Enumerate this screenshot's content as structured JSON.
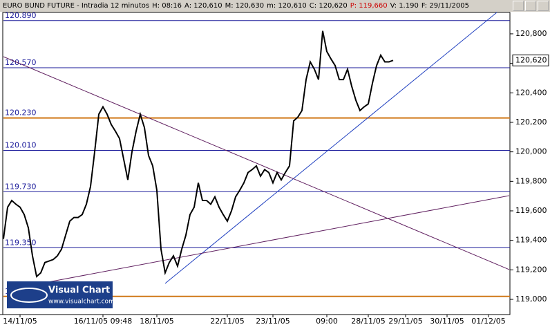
{
  "chart_data": {
    "type": "line",
    "title_bar": [
      {
        "text": "EURO BUND FUTURE - Intradia 12 minutos",
        "color": "#000000"
      },
      {
        "text": "H: 08:16",
        "color": "#000000"
      },
      {
        "text": "A: 120,610",
        "color": "#000000"
      },
      {
        "text": "M: 120,630",
        "color": "#000000"
      },
      {
        "text": "m: 120,610",
        "color": "#000000"
      },
      {
        "text": "C: 120,620",
        "color": "#000000"
      },
      {
        "text": "P: 119,660",
        "color": "#cc0000"
      },
      {
        "text": "V: 1.190",
        "color": "#000000"
      },
      {
        "text": "F: 29/11/2005",
        "color": "#000000"
      }
    ],
    "categories": [
      null,
      null,
      null,
      null,
      "14/11/05",
      null,
      null,
      null,
      null,
      null,
      null,
      null,
      null,
      null,
      null,
      null,
      null,
      null,
      null,
      null,
      null,
      null,
      null,
      null,
      "16/11/05 09:48",
      null,
      null,
      null,
      null,
      null,
      null,
      null,
      null,
      null,
      null,
      null,
      null,
      "18/11/05",
      null,
      null,
      null,
      null,
      null,
      null,
      null,
      null,
      null,
      null,
      null,
      null,
      null,
      null,
      null,
      null,
      "22/11/05",
      null,
      null,
      null,
      null,
      null,
      null,
      null,
      null,
      null,
      null,
      "23/11/05",
      null,
      null,
      null,
      null,
      null,
      null,
      null,
      null,
      null,
      null,
      null,
      null,
      "09:00",
      null,
      null,
      null,
      null,
      null,
      null,
      null,
      null,
      null,
      "28/11/05",
      null,
      null,
      null,
      null,
      null,
      null,
      null,
      null,
      "29/11/05",
      null,
      null,
      null,
      null,
      null,
      null,
      null,
      null,
      null,
      "30/11/05",
      null,
      null,
      null,
      null,
      null,
      null,
      null,
      null,
      null,
      "01/12/05",
      null,
      null,
      null,
      null,
      null
    ],
    "series": [
      {
        "name": "EURO BUND FUTURE",
        "color": "#000000",
        "values": [
          119.41,
          119.625,
          119.67,
          119.645,
          119.625,
          119.575,
          119.485,
          119.295,
          119.155,
          119.18,
          119.25,
          119.26,
          119.27,
          119.295,
          119.34,
          119.435,
          119.53,
          119.555,
          119.555,
          119.575,
          119.645,
          119.765,
          120.0,
          120.255,
          120.305,
          120.255,
          120.185,
          120.14,
          120.09,
          119.95,
          119.81,
          120.0,
          120.14,
          120.255,
          120.165,
          119.975,
          119.905,
          119.74,
          119.34,
          119.18,
          119.25,
          119.295,
          119.225,
          119.34,
          119.435,
          119.575,
          119.625,
          119.79,
          119.67,
          119.67,
          119.645,
          119.695,
          119.625,
          119.575,
          119.53,
          119.6,
          119.695,
          119.74,
          119.79,
          119.86,
          119.88,
          119.905,
          119.835,
          119.88,
          119.86,
          119.79,
          119.86,
          119.81,
          119.86,
          119.905,
          120.21,
          120.235,
          120.28,
          120.49,
          120.61,
          120.56,
          120.49,
          120.82,
          120.68,
          120.63,
          120.585,
          120.49,
          120.49,
          120.56,
          120.445,
          120.35,
          120.28,
          120.305,
          120.325,
          120.465,
          120.585,
          120.655,
          120.61,
          120.61,
          120.62,
          null,
          null,
          null,
          null,
          null,
          null,
          null,
          null,
          null,
          null,
          null,
          null,
          null,
          null,
          null,
          null,
          null,
          null,
          null,
          null,
          null,
          null,
          null,
          null,
          null,
          null,
          null,
          null
        ]
      }
    ],
    "ylim": [
      118.897,
      120.945
    ],
    "yticks": [
      {
        "value": 119.0,
        "label": "119,000"
      },
      {
        "value": 119.2,
        "label": "119,200"
      },
      {
        "value": 119.4,
        "label": "119,400"
      },
      {
        "value": 119.6,
        "label": "119,600"
      },
      {
        "value": 119.8,
        "label": "119,800"
      },
      {
        "value": 120.0,
        "label": "120,000"
      },
      {
        "value": 120.2,
        "label": "120,200"
      },
      {
        "value": 120.4,
        "label": "120,400"
      },
      {
        "value": 120.6,
        "label": "120,600"
      },
      {
        "value": 120.8,
        "label": "120,800"
      }
    ],
    "last_price": {
      "value": 120.62,
      "label": "120,620"
    },
    "levels": [
      {
        "value": 120.89,
        "label": "120.890",
        "color": "#1a1a9a"
      },
      {
        "value": 120.57,
        "label": "120.570",
        "color": "#1a1a9a"
      },
      {
        "value": 120.23,
        "label": "120.230",
        "color": "#d07818"
      },
      {
        "value": 120.01,
        "label": "120.010",
        "color": "#1a1a9a"
      },
      {
        "value": 119.73,
        "label": "119.730",
        "color": "#1a1a9a"
      },
      {
        "value": 119.35,
        "label": "119.350",
        "color": "#1a1a9a"
      },
      {
        "value": 119.02,
        "label": "1",
        "color": "#d07818"
      }
    ],
    "trendlines": [
      {
        "from": [
          39,
          119.108
        ],
        "to": [
          119,
          120.945
        ],
        "color": "#2040c0"
      },
      {
        "from": [
          0,
          120.645
        ],
        "to": [
          122,
          119.202
        ],
        "color": "#602060"
      },
      {
        "from": [
          9,
          119.108
        ],
        "to": [
          122,
          119.703
        ],
        "color": "#602060"
      }
    ],
    "logo": {
      "title": "Visual Chart",
      "url": "www.visualchart.com"
    },
    "grid": false
  }
}
